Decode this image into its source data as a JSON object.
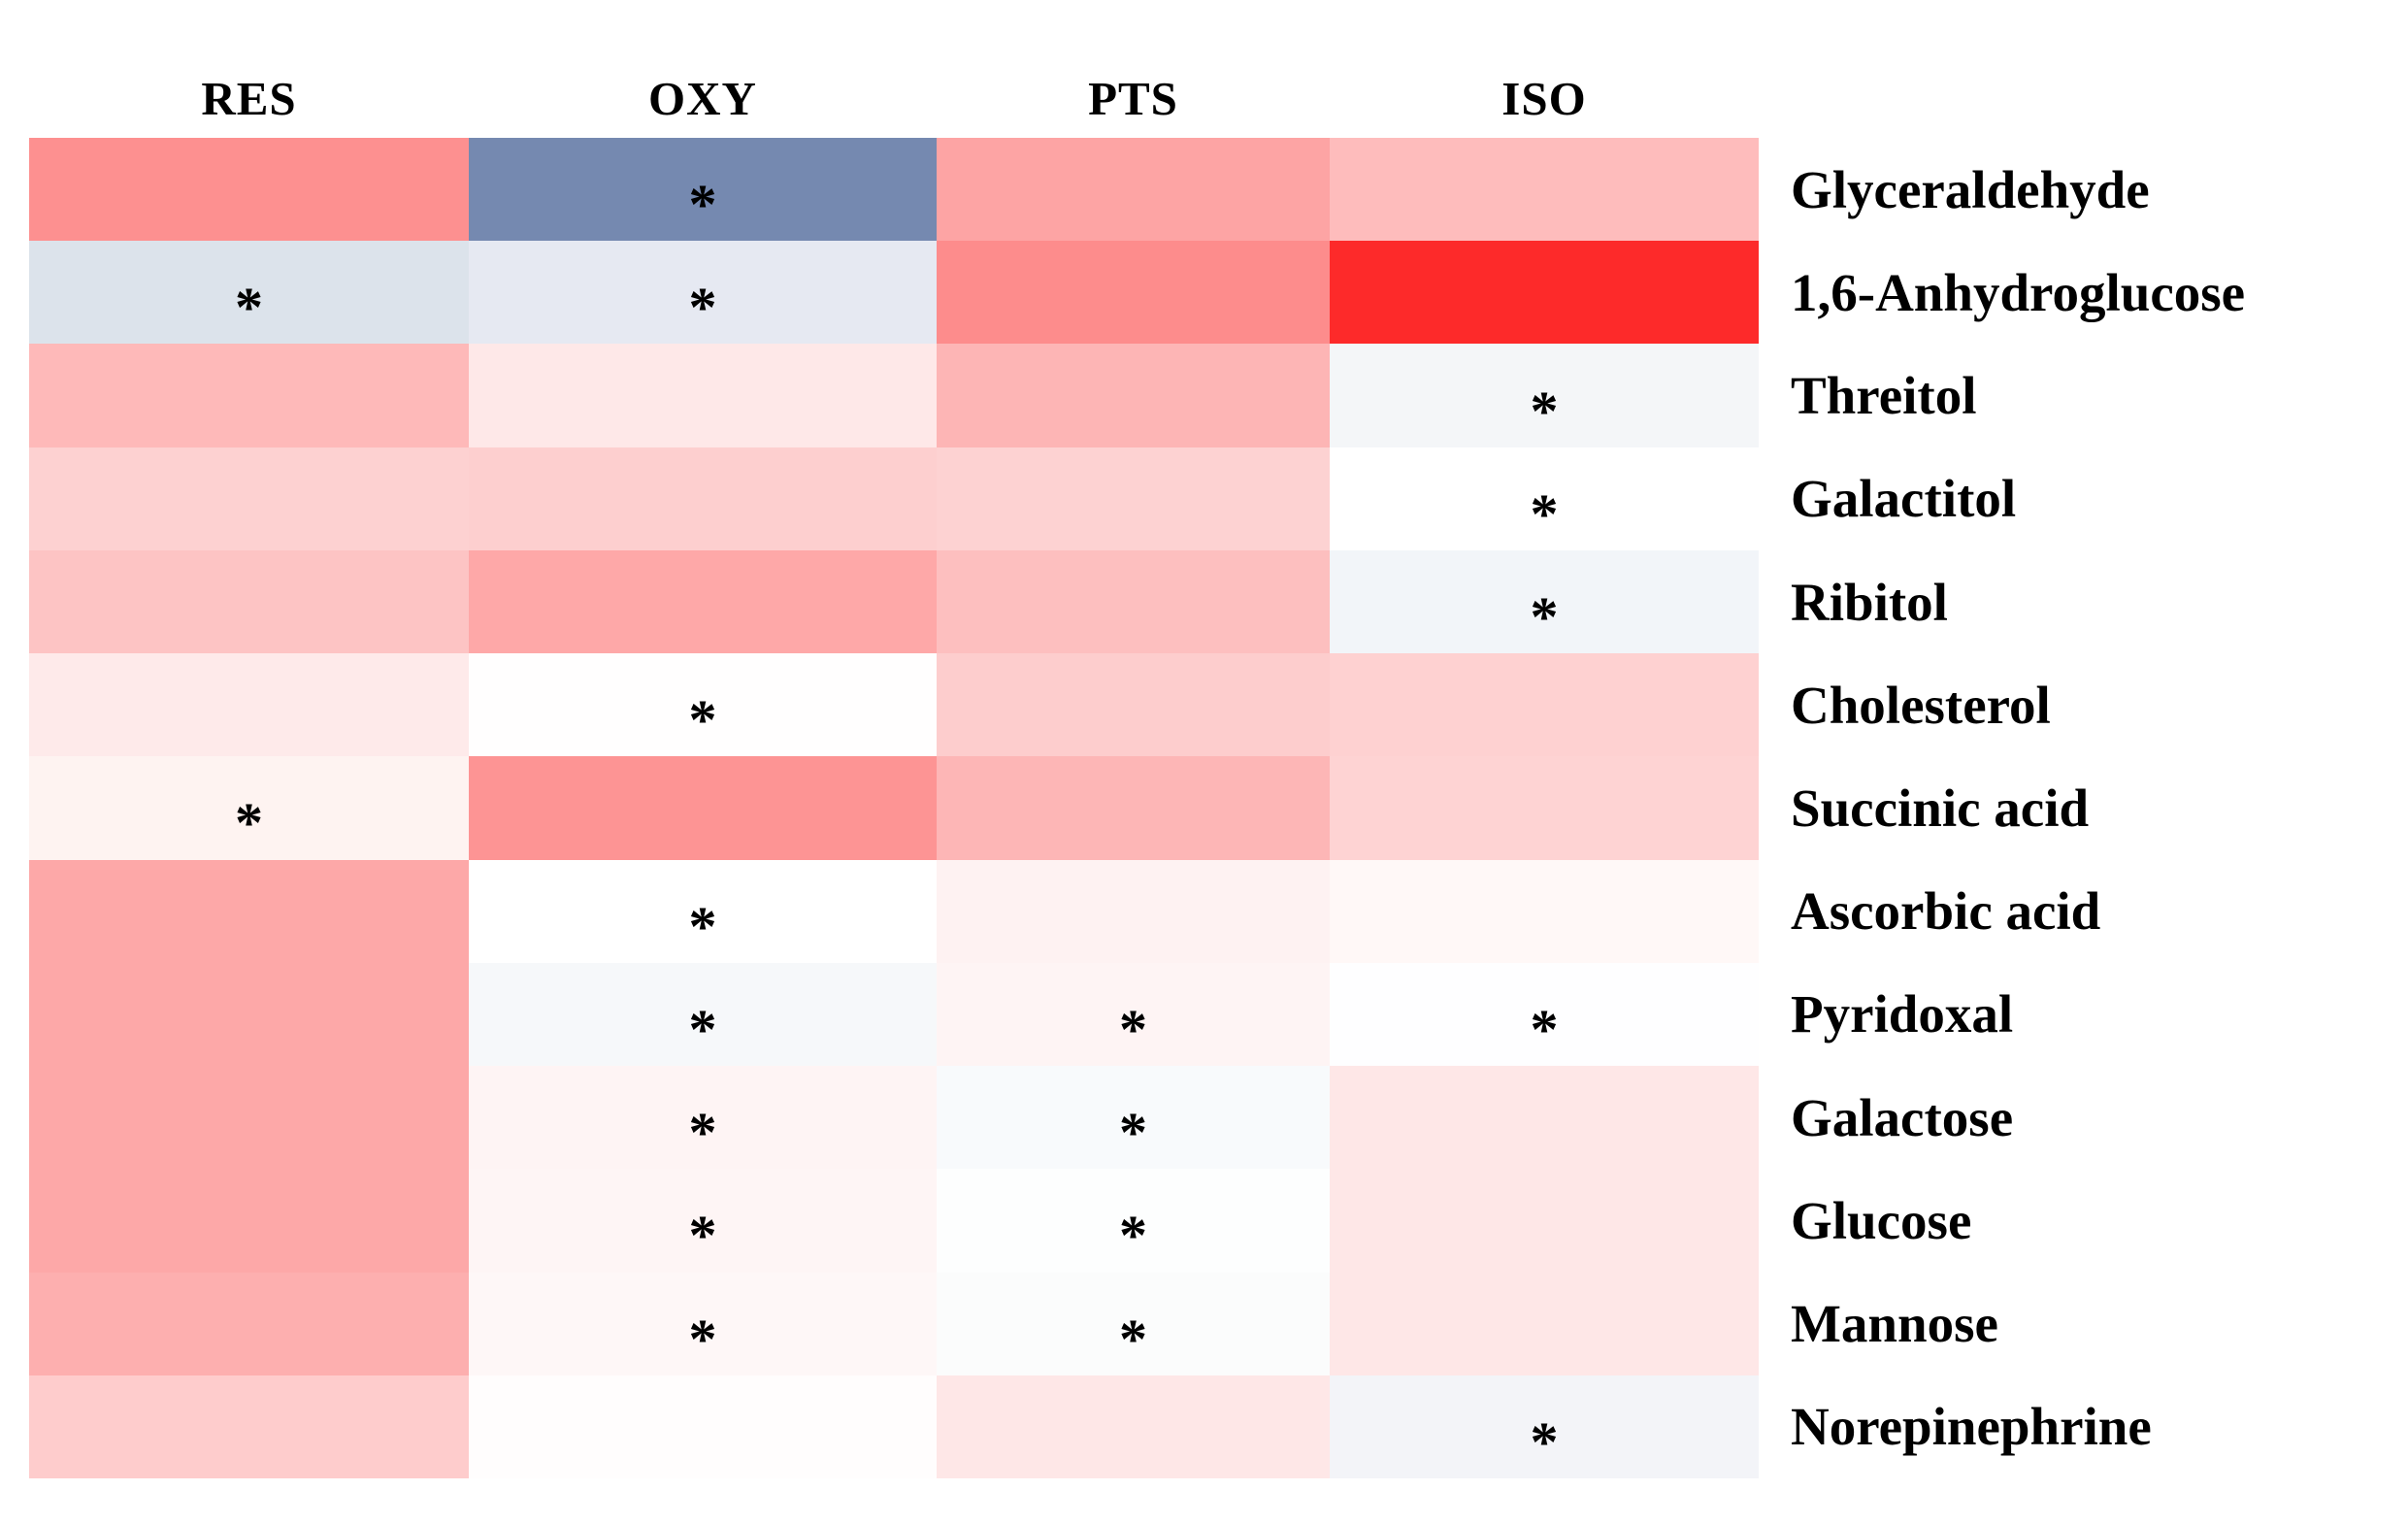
{
  "chart_data": {
    "type": "heatmap",
    "title": "",
    "columns": [
      "RES",
      "OXY",
      "PTS",
      "ISO"
    ],
    "rows": [
      "Glyceraldehyde",
      "1,6-Anhydroglucose",
      "Threitol",
      "Galactitol",
      "Ribitol",
      "Cholesterol",
      "Succinic acid",
      "Ascorbic acid",
      "Pyridoxal",
      "Galactose",
      "Glucose",
      "Mannose",
      "Norepinephrine"
    ],
    "cell_colors": [
      [
        "#FD9090",
        "#7589B0",
        "#FDA4A4",
        "#FEBCBC"
      ],
      [
        "#DCE3EB",
        "#E6E9F2",
        "#FD8C8C",
        "#FD2A2A"
      ],
      [
        "#FEB9B9",
        "#FEE8E8",
        "#FDB5B5",
        "#F4F6F8"
      ],
      [
        "#FDD1D1",
        "#FDCFCF",
        "#FDD2D2",
        "#FFFFFF"
      ],
      [
        "#FDC4C4",
        "#FEA8A8",
        "#FDBFBF",
        "#F2F5F9"
      ],
      [
        "#FEEAEA",
        "#FFFEFE",
        "#FDCDCD",
        "#FED1D1"
      ],
      [
        "#FEF3F1",
        "#FD9494",
        "#FDB6B6",
        "#FED3D3"
      ],
      [
        "#FDA8A8",
        "#FFFFFF",
        "#FEF2F2",
        "#FFF8F7"
      ],
      [
        "#FDA8A8",
        "#F6F8FA",
        "#FEF4F4",
        "#FEFEFF"
      ],
      [
        "#FDA8A8",
        "#FEF4F4",
        "#F8FAFC",
        "#FEE7E7"
      ],
      [
        "#FDA8A8",
        "#FEF5F5",
        "#FDFEFE",
        "#FEE7E7"
      ],
      [
        "#FDAFAF",
        "#FEF7F7",
        "#FBFCFC",
        "#FEE7E7"
      ],
      [
        "#FECCCC",
        "#FFFDFD",
        "#FEE7E7",
        "#F3F4F8"
      ]
    ],
    "significant": [
      [
        false,
        true,
        false,
        false
      ],
      [
        true,
        true,
        false,
        false
      ],
      [
        false,
        false,
        false,
        true
      ],
      [
        false,
        false,
        false,
        true
      ],
      [
        false,
        false,
        false,
        true
      ],
      [
        false,
        true,
        false,
        false
      ],
      [
        true,
        false,
        false,
        false
      ],
      [
        false,
        true,
        false,
        false
      ],
      [
        false,
        true,
        true,
        true
      ],
      [
        false,
        true,
        true,
        false
      ],
      [
        false,
        true,
        true,
        false
      ],
      [
        false,
        true,
        true,
        false
      ],
      [
        false,
        false,
        false,
        true
      ]
    ],
    "significance_marker": "*",
    "colormap": "blue-white-red diverging (no colorbar shown)",
    "legend_position": "none",
    "grid": false
  }
}
